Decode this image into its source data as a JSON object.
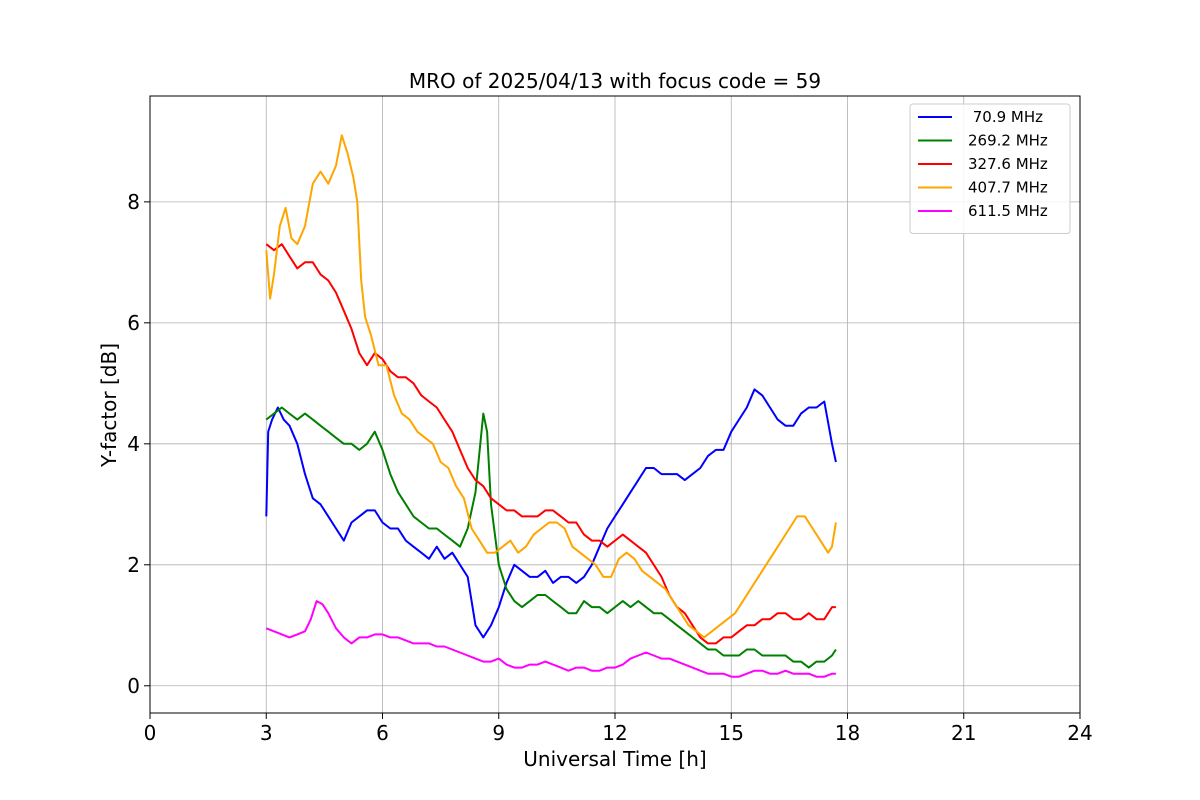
{
  "chart_data": {
    "type": "line",
    "title": "MRO of 2025/04/13 with focus code = 59",
    "xlabel": "Universal Time [h]",
    "ylabel": "Y-factor [dB]",
    "xlim": [
      0,
      24
    ],
    "ylim": [
      -0.45,
      9.75
    ],
    "xticks": [
      0,
      3,
      6,
      9,
      12,
      15,
      18,
      21,
      24
    ],
    "yticks": [
      0,
      2,
      4,
      6,
      8
    ],
    "grid": true,
    "legend_position": "top-right",
    "series": [
      {
        "name": " 70.9 MHz",
        "color": "#0000ff",
        "x": [
          3.0,
          3.05,
          3.15,
          3.3,
          3.45,
          3.6,
          3.8,
          4.0,
          4.2,
          4.4,
          4.6,
          4.8,
          5.0,
          5.2,
          5.4,
          5.6,
          5.8,
          6.0,
          6.2,
          6.4,
          6.6,
          6.8,
          7.0,
          7.2,
          7.4,
          7.6,
          7.8,
          8.0,
          8.2,
          8.4,
          8.6,
          8.8,
          9.0,
          9.2,
          9.4,
          9.6,
          9.8,
          10.0,
          10.2,
          10.4,
          10.6,
          10.8,
          11.0,
          11.2,
          11.4,
          11.6,
          11.8,
          12.0,
          12.2,
          12.4,
          12.6,
          12.8,
          13.0,
          13.2,
          13.4,
          13.6,
          13.8,
          14.0,
          14.2,
          14.4,
          14.6,
          14.8,
          15.0,
          15.2,
          15.4,
          15.6,
          15.8,
          16.0,
          16.2,
          16.4,
          16.6,
          16.8,
          17.0,
          17.2,
          17.4,
          17.6,
          17.7
        ],
        "y": [
          2.8,
          4.2,
          4.4,
          4.6,
          4.4,
          4.3,
          4.0,
          3.5,
          3.1,
          3.0,
          2.8,
          2.6,
          2.4,
          2.7,
          2.8,
          2.9,
          2.9,
          2.7,
          2.6,
          2.6,
          2.4,
          2.3,
          2.2,
          2.1,
          2.3,
          2.1,
          2.2,
          2.0,
          1.8,
          1.0,
          0.8,
          1.0,
          1.3,
          1.7,
          2.0,
          1.9,
          1.8,
          1.8,
          1.9,
          1.7,
          1.8,
          1.8,
          1.7,
          1.8,
          2.0,
          2.3,
          2.6,
          2.8,
          3.0,
          3.2,
          3.4,
          3.6,
          3.6,
          3.5,
          3.5,
          3.5,
          3.4,
          3.5,
          3.6,
          3.8,
          3.9,
          3.9,
          4.2,
          4.4,
          4.6,
          4.9,
          4.8,
          4.6,
          4.4,
          4.3,
          4.3,
          4.5,
          4.6,
          4.6,
          4.7,
          4.0,
          3.7
        ]
      },
      {
        "name": "269.2 MHz",
        "color": "#008000",
        "x": [
          3.0,
          3.2,
          3.4,
          3.6,
          3.8,
          4.0,
          4.2,
          4.4,
          4.6,
          4.8,
          5.0,
          5.2,
          5.4,
          5.6,
          5.8,
          6.0,
          6.2,
          6.4,
          6.6,
          6.8,
          7.0,
          7.2,
          7.4,
          7.6,
          7.8,
          8.0,
          8.2,
          8.4,
          8.6,
          8.7,
          8.8,
          9.0,
          9.2,
          9.4,
          9.6,
          9.8,
          10.0,
          10.2,
          10.4,
          10.6,
          10.8,
          11.0,
          11.2,
          11.4,
          11.6,
          11.8,
          12.0,
          12.2,
          12.4,
          12.6,
          12.8,
          13.0,
          13.2,
          13.4,
          13.6,
          13.8,
          14.0,
          14.2,
          14.4,
          14.6,
          14.8,
          15.0,
          15.2,
          15.4,
          15.6,
          15.8,
          16.0,
          16.2,
          16.4,
          16.6,
          16.8,
          17.0,
          17.2,
          17.4,
          17.6,
          17.7
        ],
        "y": [
          4.4,
          4.5,
          4.6,
          4.5,
          4.4,
          4.5,
          4.4,
          4.3,
          4.2,
          4.1,
          4.0,
          4.0,
          3.9,
          4.0,
          4.2,
          3.9,
          3.5,
          3.2,
          3.0,
          2.8,
          2.7,
          2.6,
          2.6,
          2.5,
          2.4,
          2.3,
          2.6,
          3.2,
          4.5,
          4.2,
          3.0,
          2.0,
          1.6,
          1.4,
          1.3,
          1.4,
          1.5,
          1.5,
          1.4,
          1.3,
          1.2,
          1.2,
          1.4,
          1.3,
          1.3,
          1.2,
          1.3,
          1.4,
          1.3,
          1.4,
          1.3,
          1.2,
          1.2,
          1.1,
          1.0,
          0.9,
          0.8,
          0.7,
          0.6,
          0.6,
          0.5,
          0.5,
          0.5,
          0.6,
          0.6,
          0.5,
          0.5,
          0.5,
          0.5,
          0.4,
          0.4,
          0.3,
          0.4,
          0.4,
          0.5,
          0.6
        ]
      },
      {
        "name": "327.6 MHz",
        "color": "#ff0000",
        "x": [
          3.0,
          3.2,
          3.4,
          3.6,
          3.8,
          4.0,
          4.2,
          4.4,
          4.6,
          4.8,
          5.0,
          5.2,
          5.4,
          5.6,
          5.8,
          6.0,
          6.2,
          6.4,
          6.6,
          6.8,
          7.0,
          7.2,
          7.4,
          7.6,
          7.8,
          8.0,
          8.2,
          8.4,
          8.6,
          8.8,
          9.0,
          9.2,
          9.4,
          9.6,
          9.8,
          10.0,
          10.2,
          10.4,
          10.6,
          10.8,
          11.0,
          11.2,
          11.4,
          11.6,
          11.8,
          12.0,
          12.2,
          12.4,
          12.6,
          12.8,
          13.0,
          13.2,
          13.4,
          13.6,
          13.8,
          14.0,
          14.2,
          14.4,
          14.6,
          14.8,
          15.0,
          15.2,
          15.4,
          15.6,
          15.8,
          16.0,
          16.2,
          16.4,
          16.6,
          16.8,
          17.0,
          17.2,
          17.4,
          17.6,
          17.7
        ],
        "y": [
          7.3,
          7.2,
          7.3,
          7.1,
          6.9,
          7.0,
          7.0,
          6.8,
          6.7,
          6.5,
          6.2,
          5.9,
          5.5,
          5.3,
          5.5,
          5.4,
          5.2,
          5.1,
          5.1,
          5.0,
          4.8,
          4.7,
          4.6,
          4.4,
          4.2,
          3.9,
          3.6,
          3.4,
          3.3,
          3.1,
          3.0,
          2.9,
          2.9,
          2.8,
          2.8,
          2.8,
          2.9,
          2.9,
          2.8,
          2.7,
          2.7,
          2.5,
          2.4,
          2.4,
          2.3,
          2.4,
          2.5,
          2.4,
          2.3,
          2.2,
          2.0,
          1.8,
          1.5,
          1.3,
          1.2,
          1.0,
          0.8,
          0.7,
          0.7,
          0.8,
          0.8,
          0.9,
          1.0,
          1.0,
          1.1,
          1.1,
          1.2,
          1.2,
          1.1,
          1.1,
          1.2,
          1.1,
          1.1,
          1.3,
          1.3
        ]
      },
      {
        "name": "407.7 MHz",
        "color": "#ffa500",
        "x": [
          3.0,
          3.1,
          3.2,
          3.35,
          3.5,
          3.65,
          3.8,
          4.0,
          4.2,
          4.4,
          4.6,
          4.8,
          4.95,
          5.1,
          5.25,
          5.35,
          5.45,
          5.55,
          5.7,
          5.9,
          6.1,
          6.3,
          6.5,
          6.7,
          6.9,
          7.1,
          7.3,
          7.5,
          7.7,
          7.9,
          8.1,
          8.3,
          8.5,
          8.7,
          8.9,
          9.1,
          9.3,
          9.5,
          9.7,
          9.9,
          10.1,
          10.3,
          10.5,
          10.7,
          10.9,
          11.1,
          11.3,
          11.5,
          11.7,
          11.9,
          12.1,
          12.3,
          12.5,
          12.7,
          12.9,
          13.1,
          13.3,
          13.5,
          13.7,
          13.9,
          14.1,
          14.3,
          14.5,
          14.7,
          14.9,
          15.1,
          15.3,
          15.5,
          15.7,
          15.9,
          16.1,
          16.3,
          16.5,
          16.7,
          16.9,
          17.1,
          17.3,
          17.5,
          17.6,
          17.7
        ],
        "y": [
          7.2,
          6.4,
          6.8,
          7.6,
          7.9,
          7.4,
          7.3,
          7.6,
          8.3,
          8.5,
          8.3,
          8.6,
          9.1,
          8.8,
          8.4,
          8.0,
          6.7,
          6.1,
          5.8,
          5.3,
          5.3,
          4.8,
          4.5,
          4.4,
          4.2,
          4.1,
          4.0,
          3.7,
          3.6,
          3.3,
          3.1,
          2.6,
          2.4,
          2.2,
          2.2,
          2.3,
          2.4,
          2.2,
          2.3,
          2.5,
          2.6,
          2.7,
          2.7,
          2.6,
          2.3,
          2.2,
          2.1,
          2.0,
          1.8,
          1.8,
          2.1,
          2.2,
          2.1,
          1.9,
          1.8,
          1.7,
          1.6,
          1.4,
          1.2,
          1.0,
          0.9,
          0.8,
          0.9,
          1.0,
          1.1,
          1.2,
          1.4,
          1.6,
          1.8,
          2.0,
          2.2,
          2.4,
          2.6,
          2.8,
          2.8,
          2.6,
          2.4,
          2.2,
          2.3,
          2.7
        ]
      },
      {
        "name": "611.5 MHz",
        "color": "#ff00ff",
        "x": [
          3.0,
          3.2,
          3.4,
          3.6,
          3.8,
          4.0,
          4.15,
          4.3,
          4.45,
          4.6,
          4.8,
          5.0,
          5.2,
          5.4,
          5.6,
          5.8,
          6.0,
          6.2,
          6.4,
          6.6,
          6.8,
          7.0,
          7.2,
          7.4,
          7.6,
          7.8,
          8.0,
          8.2,
          8.4,
          8.6,
          8.8,
          9.0,
          9.2,
          9.4,
          9.6,
          9.8,
          10.0,
          10.2,
          10.4,
          10.6,
          10.8,
          11.0,
          11.2,
          11.4,
          11.6,
          11.8,
          12.0,
          12.2,
          12.4,
          12.6,
          12.8,
          13.0,
          13.2,
          13.4,
          13.6,
          13.8,
          14.0,
          14.2,
          14.4,
          14.6,
          14.8,
          15.0,
          15.2,
          15.4,
          15.6,
          15.8,
          16.0,
          16.2,
          16.4,
          16.6,
          16.8,
          17.0,
          17.2,
          17.4,
          17.6,
          17.7
        ],
        "y": [
          0.95,
          0.9,
          0.85,
          0.8,
          0.85,
          0.9,
          1.1,
          1.4,
          1.35,
          1.2,
          0.95,
          0.8,
          0.7,
          0.8,
          0.8,
          0.85,
          0.85,
          0.8,
          0.8,
          0.75,
          0.7,
          0.7,
          0.7,
          0.65,
          0.65,
          0.6,
          0.55,
          0.5,
          0.45,
          0.4,
          0.4,
          0.45,
          0.35,
          0.3,
          0.3,
          0.35,
          0.35,
          0.4,
          0.35,
          0.3,
          0.25,
          0.3,
          0.3,
          0.25,
          0.25,
          0.3,
          0.3,
          0.35,
          0.45,
          0.5,
          0.55,
          0.5,
          0.45,
          0.45,
          0.4,
          0.35,
          0.3,
          0.25,
          0.2,
          0.2,
          0.2,
          0.15,
          0.15,
          0.2,
          0.25,
          0.25,
          0.2,
          0.2,
          0.25,
          0.2,
          0.2,
          0.2,
          0.15,
          0.15,
          0.2,
          0.2
        ]
      }
    ]
  }
}
